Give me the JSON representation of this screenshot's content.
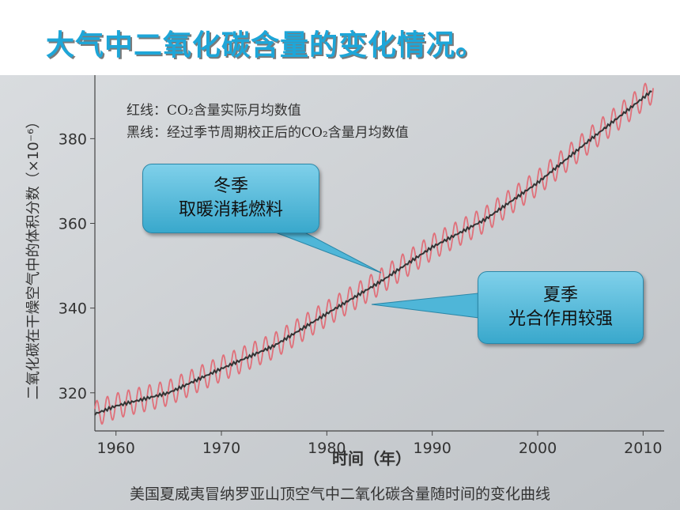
{
  "slide_title": "大气中二氧化碳含量的变化情况。",
  "legend": {
    "red_line": "红线：CO₂含量实际月均数值",
    "black_line": "黑线：经过季节周期校正后的CO₂含量月均数值"
  },
  "callouts": {
    "winter": {
      "title": "冬季",
      "text": "取暖消耗燃料"
    },
    "summer": {
      "title": "夏季",
      "text": "光合作用较强"
    }
  },
  "caption": "美国夏威夷冒纳罗亚山顶空气中二氧化碳含量随时间的变化曲线",
  "colors": {
    "title": "#1ea6d8",
    "red_line": "#e0707a",
    "black_line": "#333333",
    "callout": "#4fb6d8"
  },
  "chart_data": {
    "type": "line",
    "xlabel": "时间（年）",
    "ylabel": "二氧化碳在干燥空气中的体积分数（×10⁻⁶）",
    "xlim": [
      1958,
      2012
    ],
    "ylim": [
      311,
      395
    ],
    "x_ticks": [
      1960,
      1970,
      1980,
      1990,
      2000,
      2010
    ],
    "y_ticks": [
      320,
      340,
      360,
      380
    ],
    "series": [
      {
        "name": "红线",
        "description_values": "monthly actual values with seasonal oscillation",
        "x": [
          1958,
          1960,
          1965,
          1970,
          1975,
          1980,
          1985,
          1990,
          1995,
          2000,
          2005,
          2011
        ],
        "y": [
          315,
          316.9,
          320.0,
          325.7,
          331.1,
          338.7,
          346.1,
          354.4,
          360.9,
          369.6,
          379.8,
          391.6
        ],
        "seasonal_amplitude": 3
      },
      {
        "name": "黑线",
        "x": [
          1958,
          1960,
          1965,
          1970,
          1975,
          1980,
          1985,
          1990,
          1995,
          2000,
          2005,
          2011
        ],
        "y": [
          315,
          316.9,
          320.0,
          325.7,
          331.1,
          338.7,
          346.1,
          354.4,
          360.9,
          369.6,
          379.8,
          391.6
        ]
      }
    ]
  }
}
